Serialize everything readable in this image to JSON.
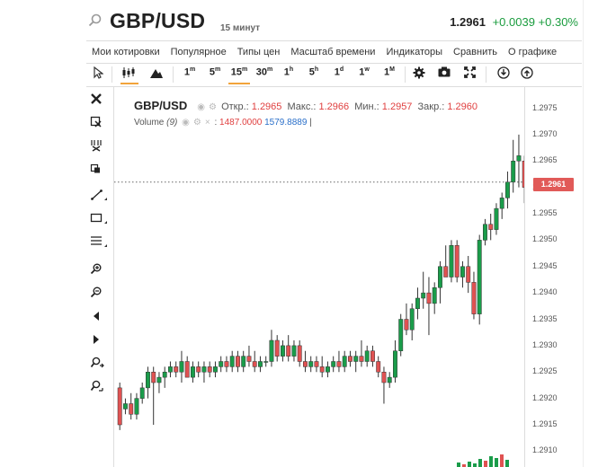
{
  "header": {
    "symbol": "GBP/USD",
    "interval": "15 минут",
    "price": "1.2961",
    "change": "+0.0039 +0.30%"
  },
  "menu": {
    "items": [
      "Мои котировки",
      "Популярное",
      "Типы цен",
      "Масштаб времени",
      "Индикаторы",
      "Сравнить",
      "О графике"
    ]
  },
  "toolbar": {
    "intervals": [
      {
        "n": "1",
        "u": "m"
      },
      {
        "n": "5",
        "u": "m"
      },
      {
        "n": "15",
        "u": "m"
      },
      {
        "n": "30",
        "u": "m"
      },
      {
        "n": "1",
        "u": "h"
      },
      {
        "n": "5",
        "u": "h"
      },
      {
        "n": "1",
        "u": "d"
      },
      {
        "n": "1",
        "u": "w"
      },
      {
        "n": "1",
        "u": "M"
      }
    ],
    "active_interval": "15m",
    "accent": "#f2a33a"
  },
  "legend": {
    "symbol": "GBP/USD",
    "open_label": "Откр.:",
    "open": "1.2965",
    "high_label": "Макс.:",
    "high": "1.2966",
    "low_label": "Мин.:",
    "low": "1.2957",
    "close_label": "Закр.:",
    "close": "1.2960",
    "volume_label": "Volume",
    "volume_param": "(9)",
    "volume_v1": "1487.0000",
    "volume_v2": "1579.8889"
  },
  "colors": {
    "up": "#1a9c4a",
    "down": "#e05252",
    "badge": "#e15a58",
    "positive": "#1a9c3e"
  },
  "chart_data": {
    "type": "candlestick",
    "title": "GBP/USD",
    "ylabel": "",
    "y_ticks": [
      "1.2975",
      "1.2970",
      "1.2965",
      "1.2960",
      "1.2955",
      "1.2950",
      "1.2945",
      "1.2940",
      "1.2935",
      "1.2930",
      "1.2925",
      "1.2920",
      "1.2915",
      "1.2910"
    ],
    "ylim": [
      1.2907,
      1.2979
    ],
    "current_price": "1.2961",
    "candles": [
      [
        1.2922,
        1.2923,
        1.2914,
        1.2915
      ],
      [
        1.2918,
        1.292,
        1.2917,
        1.2919
      ],
      [
        1.2919,
        1.2921,
        1.2916,
        1.2917
      ],
      [
        1.2917,
        1.2921,
        1.2916,
        1.292
      ],
      [
        1.292,
        1.2923,
        1.2919,
        1.2922
      ],
      [
        1.2922,
        1.2926,
        1.292,
        1.2925
      ],
      [
        1.2925,
        1.2926,
        1.2915,
        1.2923
      ],
      [
        1.2923,
        1.2925,
        1.2921,
        1.2924
      ],
      [
        1.2924,
        1.2926,
        1.2922,
        1.2925
      ],
      [
        1.2925,
        1.2927,
        1.2924,
        1.2926
      ],
      [
        1.2926,
        1.2927,
        1.2924,
        1.2925
      ],
      [
        1.2925,
        1.2929,
        1.2923,
        1.2927
      ],
      [
        1.2927,
        1.2928,
        1.2924,
        1.2924
      ],
      [
        1.2924,
        1.2927,
        1.2923,
        1.2926
      ],
      [
        1.2926,
        1.2927,
        1.2924,
        1.2925
      ],
      [
        1.2925,
        1.2927,
        1.2923,
        1.2926
      ],
      [
        1.2926,
        1.2927,
        1.2924,
        1.2925
      ],
      [
        1.2925,
        1.2927,
        1.2924,
        1.2926
      ],
      [
        1.2926,
        1.2928,
        1.2925,
        1.2927
      ],
      [
        1.2927,
        1.2928,
        1.2925,
        1.2926
      ],
      [
        1.2926,
        1.2929,
        1.2925,
        1.2928
      ],
      [
        1.2928,
        1.2929,
        1.2925,
        1.2926
      ],
      [
        1.2926,
        1.2929,
        1.2925,
        1.2928
      ],
      [
        1.2928,
        1.293,
        1.2926,
        1.2927
      ],
      [
        1.2927,
        1.2929,
        1.2925,
        1.2926
      ],
      [
        1.2926,
        1.2928,
        1.2925,
        1.2927
      ],
      [
        1.2927,
        1.2928,
        1.2926,
        1.2927
      ],
      [
        1.2927,
        1.2933,
        1.2926,
        1.2931
      ],
      [
        1.2931,
        1.2932,
        1.2927,
        1.2928
      ],
      [
        1.2928,
        1.2931,
        1.2927,
        1.293
      ],
      [
        1.293,
        1.2932,
        1.2927,
        1.2928
      ],
      [
        1.2928,
        1.2931,
        1.2927,
        1.293
      ],
      [
        1.293,
        1.2931,
        1.2926,
        1.2927
      ],
      [
        1.2927,
        1.2929,
        1.2925,
        1.2926
      ],
      [
        1.2926,
        1.2928,
        1.2925,
        1.2927
      ],
      [
        1.2927,
        1.2928,
        1.2925,
        1.2926
      ],
      [
        1.2926,
        1.2928,
        1.2924,
        1.2925
      ],
      [
        1.2925,
        1.2927,
        1.2924,
        1.2926
      ],
      [
        1.2926,
        1.2928,
        1.2925,
        1.2927
      ],
      [
        1.2927,
        1.2929,
        1.2925,
        1.2926
      ],
      [
        1.2926,
        1.2929,
        1.2925,
        1.2928
      ],
      [
        1.2928,
        1.2929,
        1.2926,
        1.2927
      ],
      [
        1.2927,
        1.2929,
        1.2925,
        1.2928
      ],
      [
        1.2928,
        1.2931,
        1.2926,
        1.2927
      ],
      [
        1.2927,
        1.293,
        1.2926,
        1.2929
      ],
      [
        1.2929,
        1.293,
        1.2926,
        1.2927
      ],
      [
        1.2927,
        1.2928,
        1.2924,
        1.2925
      ],
      [
        1.2925,
        1.2926,
        1.2919,
        1.2923
      ],
      [
        1.2923,
        1.2925,
        1.2922,
        1.2924
      ],
      [
        1.2924,
        1.2931,
        1.2923,
        1.2929
      ],
      [
        1.2929,
        1.2936,
        1.2928,
        1.2935
      ],
      [
        1.2935,
        1.2938,
        1.2932,
        1.2933
      ],
      [
        1.2933,
        1.2938,
        1.2931,
        1.2937
      ],
      [
        1.2937,
        1.2941,
        1.2935,
        1.2939
      ],
      [
        1.2939,
        1.2944,
        1.2937,
        1.294
      ],
      [
        1.294,
        1.2943,
        1.2932,
        1.2938
      ],
      [
        1.2938,
        1.2942,
        1.2936,
        1.2941
      ],
      [
        1.2941,
        1.2946,
        1.2938,
        1.2945
      ],
      [
        1.2945,
        1.2949,
        1.2943,
        1.2943
      ],
      [
        1.2943,
        1.295,
        1.2942,
        1.2949
      ],
      [
        1.2949,
        1.295,
        1.2942,
        1.2943
      ],
      [
        1.2943,
        1.2946,
        1.2941,
        1.2945
      ],
      [
        1.2945,
        1.2947,
        1.294,
        1.2942
      ],
      [
        1.2942,
        1.2944,
        1.2935,
        1.2936
      ],
      [
        1.2936,
        1.2951,
        1.2934,
        1.295
      ],
      [
        1.295,
        1.2954,
        1.2949,
        1.2953
      ],
      [
        1.2953,
        1.2955,
        1.295,
        1.2952
      ],
      [
        1.2952,
        1.2957,
        1.2951,
        1.2956
      ],
      [
        1.2956,
        1.2959,
        1.2954,
        1.2958
      ],
      [
        1.2958,
        1.2963,
        1.2956,
        1.2961
      ],
      [
        1.2961,
        1.2969,
        1.2959,
        1.2965
      ],
      [
        1.2965,
        1.297,
        1.296,
        1.2966
      ],
      [
        1.2965,
        1.2966,
        1.2957,
        1.296
      ]
    ]
  }
}
